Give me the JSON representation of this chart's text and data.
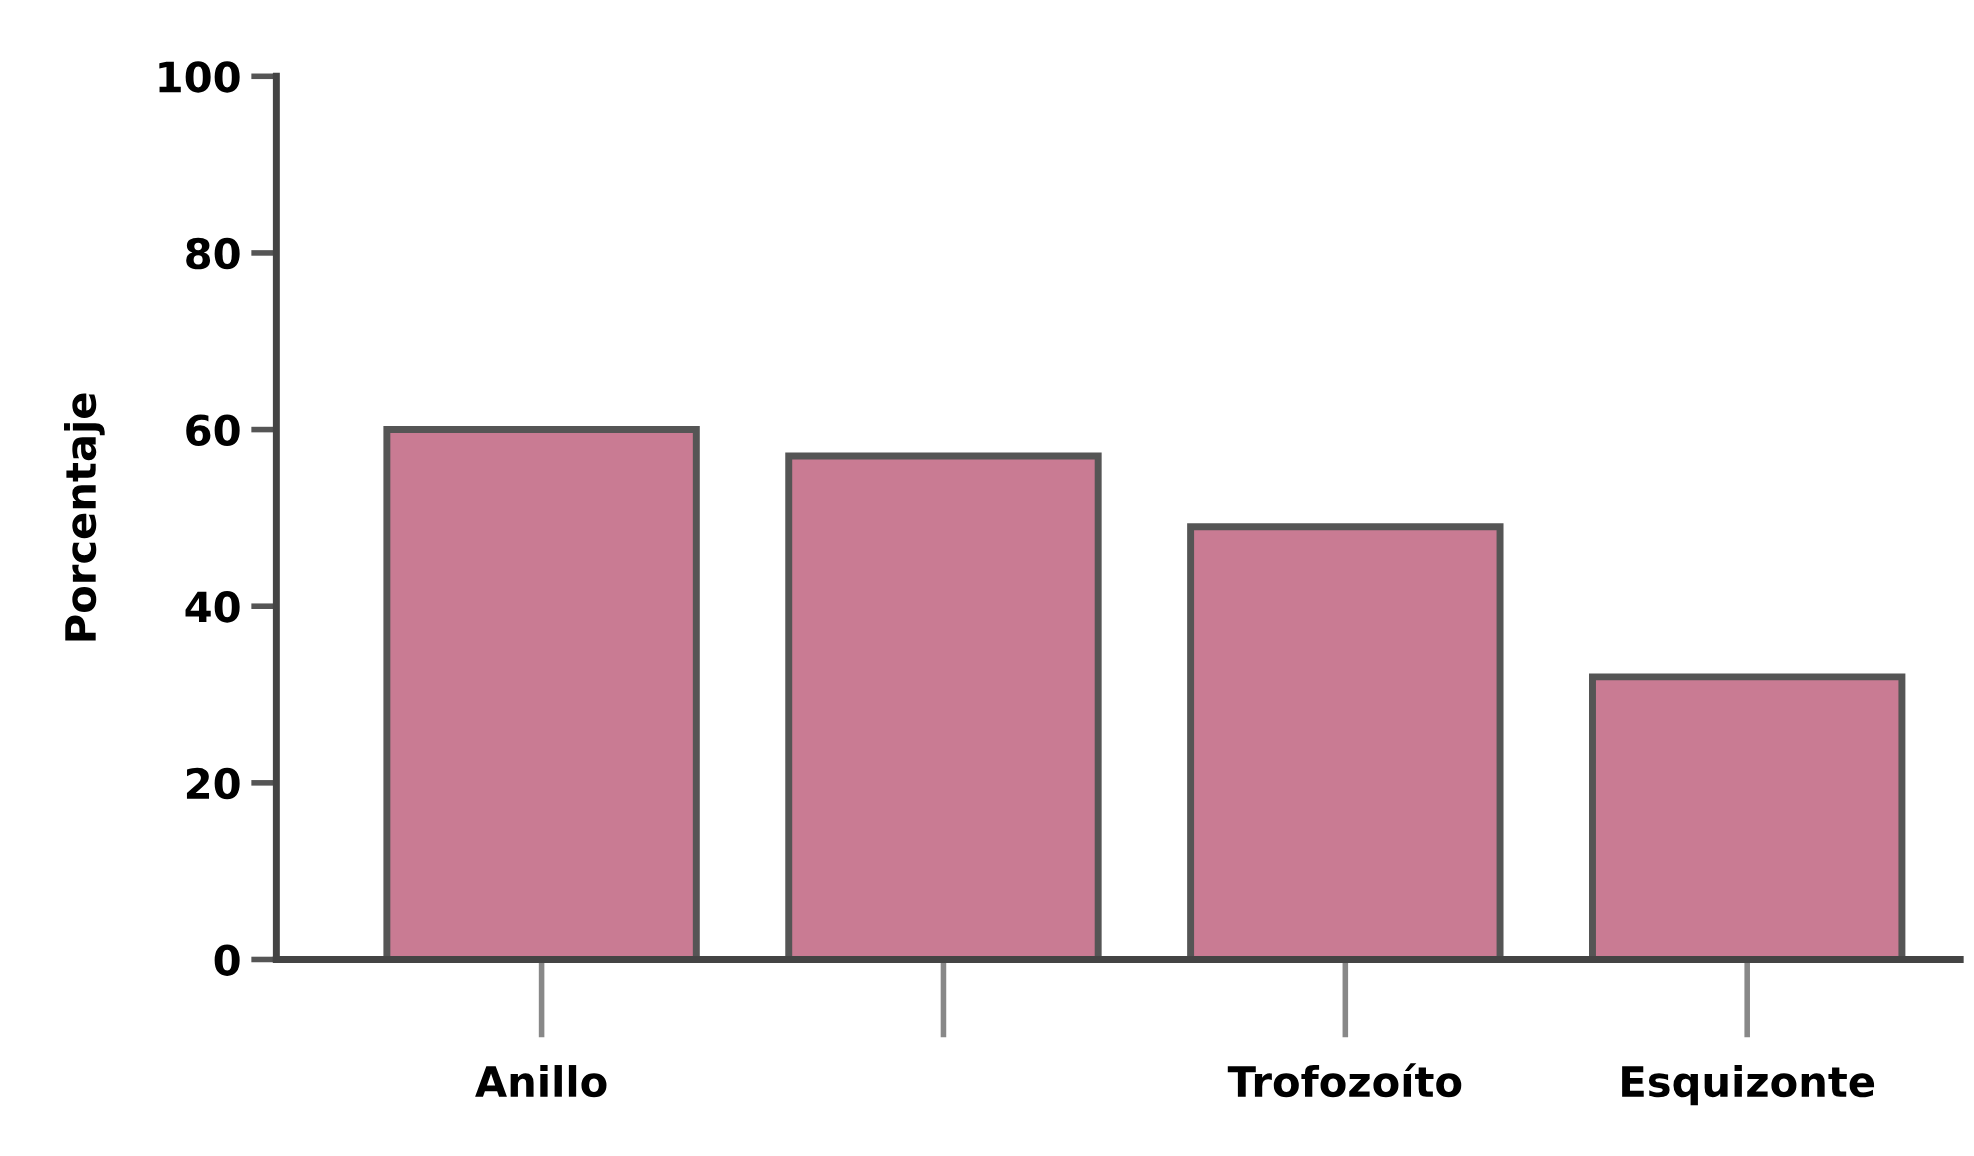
{
  "chart_data": {
    "type": "bar",
    "ylabel": "Porcentaje",
    "categories": [
      "Anillo",
      null,
      "Trofozoíto",
      "Esquizonte"
    ],
    "values": [
      60,
      57,
      49,
      32
    ],
    "color": "#c97b93",
    "ylim": [
      0,
      100
    ],
    "yticks": [
      0,
      20,
      40,
      60,
      80,
      100
    ],
    "grid": false
  }
}
